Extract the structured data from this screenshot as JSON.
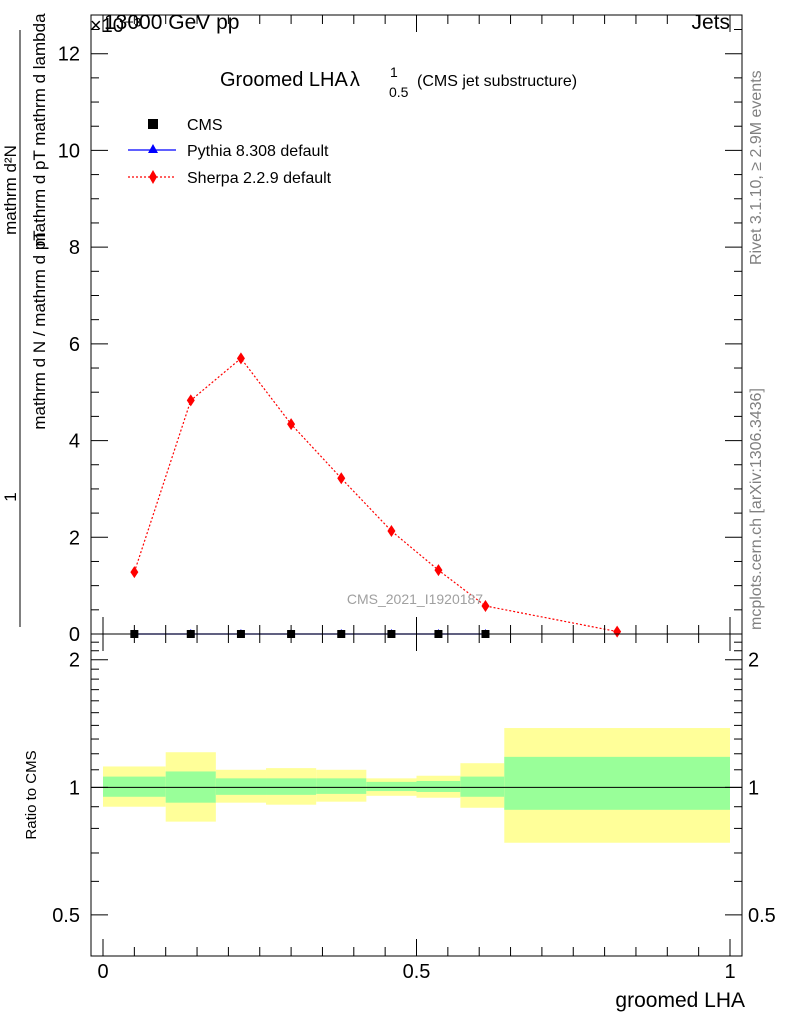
{
  "header": {
    "left": "13000 GeV pp",
    "right": "Jets",
    "exponent_label": "×10⁻³"
  },
  "side_labels": {
    "rivet": "Rivet 3.1.10, ≥ 2.9M events",
    "mcplots": "mcplots.cern.ch [arXiv:1306.3436]"
  },
  "watermark": "CMS_2021_I1920187",
  "chart_data": [
    {
      "type": "scatter",
      "panel": "main",
      "title": "Groomed LHA",
      "title_symbol": "λ",
      "title_sup": "1",
      "title_sub": "0.5",
      "title_suffix": "(CMS jet substructure)",
      "ylabel_num": "mathrm d²N",
      "ylabel_den": "mathrm d pT mathrm d lambda",
      "ylabel_prefix_num": "1",
      "ylabel_prefix_den": "mathrm d N / mathrm d pT",
      "xlim": [
        0,
        1
      ],
      "ylim": [
        0,
        12.8
      ],
      "y_scale_note": "×10⁻³",
      "yticks": [
        0,
        2,
        4,
        6,
        8,
        10,
        12
      ],
      "grid": false,
      "legend_position": "top-left",
      "series": [
        {
          "name": "CMS",
          "style": "square-marker",
          "color": "#000000",
          "x": [
            0.05,
            0.14,
            0.22,
            0.3,
            0.38,
            0.46,
            0.535,
            0.61
          ],
          "y": [
            0,
            0,
            0,
            0,
            0,
            0,
            0,
            0
          ]
        },
        {
          "name": "Pythia 8.308 default",
          "style": "triangle-line",
          "color": "#0000ff",
          "x": [
            0.05,
            0.14,
            0.22,
            0.3,
            0.38,
            0.46,
            0.535,
            0.61
          ],
          "y": [
            0,
            0,
            0,
            0,
            0,
            0,
            0,
            0
          ]
        },
        {
          "name": "Sherpa 2.2.9 default",
          "style": "diamond-dotted",
          "color": "#ff0000",
          "x": [
            0.05,
            0.14,
            0.22,
            0.3,
            0.38,
            0.46,
            0.535,
            0.61,
            0.82
          ],
          "y": [
            1.28,
            4.83,
            5.7,
            4.34,
            3.22,
            2.13,
            1.32,
            0.58,
            0.05
          ]
        }
      ]
    },
    {
      "type": "area",
      "panel": "ratio",
      "ylabel": "Ratio to CMS",
      "xlabel": "groomed LHA",
      "xlim": [
        0,
        1
      ],
      "ylim": [
        0.4,
        2.3
      ],
      "y_scale": "log",
      "yticks": [
        0.5,
        1,
        2
      ],
      "xticks": [
        0,
        0.5,
        1
      ],
      "bins": [
        {
          "x_low": 0.0,
          "x_high": 0.1,
          "yellow": [
            0.9,
            1.12
          ],
          "green": [
            0.95,
            1.06
          ]
        },
        {
          "x_low": 0.1,
          "x_high": 0.18,
          "yellow": [
            0.83,
            1.21
          ],
          "green": [
            0.92,
            1.09
          ]
        },
        {
          "x_low": 0.18,
          "x_high": 0.26,
          "yellow": [
            0.92,
            1.1
          ],
          "green": [
            0.96,
            1.05
          ]
        },
        {
          "x_low": 0.26,
          "x_high": 0.34,
          "yellow": [
            0.91,
            1.11
          ],
          "green": [
            0.96,
            1.05
          ]
        },
        {
          "x_low": 0.34,
          "x_high": 0.42,
          "yellow": [
            0.925,
            1.1
          ],
          "green": [
            0.965,
            1.05
          ]
        },
        {
          "x_low": 0.42,
          "x_high": 0.5,
          "yellow": [
            0.955,
            1.05
          ],
          "green": [
            0.98,
            1.03
          ]
        },
        {
          "x_low": 0.5,
          "x_high": 0.57,
          "yellow": [
            0.945,
            1.065
          ],
          "green": [
            0.975,
            1.035
          ]
        },
        {
          "x_low": 0.57,
          "x_high": 0.64,
          "yellow": [
            0.895,
            1.14
          ],
          "green": [
            0.95,
            1.06
          ]
        },
        {
          "x_low": 0.64,
          "x_high": 1.0,
          "yellow": [
            0.74,
            1.38
          ],
          "green": [
            0.885,
            1.18
          ]
        }
      ]
    }
  ]
}
